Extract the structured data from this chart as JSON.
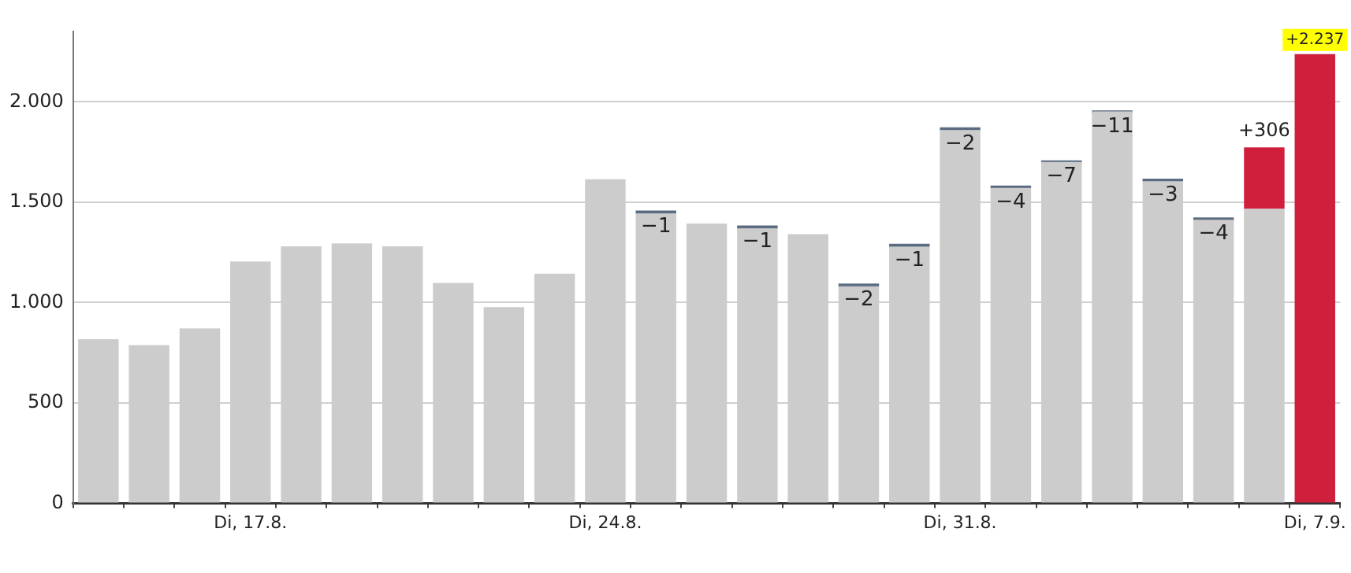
{
  "chart_data": {
    "type": "bar",
    "stacked": true,
    "categories": [
      null,
      null,
      null,
      "Di, 17.8.",
      null,
      null,
      null,
      null,
      null,
      null,
      "Di, 24.8.",
      null,
      null,
      null,
      null,
      null,
      null,
      "Di, 31.8.",
      null,
      null,
      null,
      null,
      null,
      null,
      "Di, 7.9."
    ],
    "series": [
      {
        "color": "#cccccc",
        "values": [
          818,
          788,
          871,
          1205,
          1280,
          1295,
          1280,
          1098,
          977,
          1144,
          1614,
          1444,
          1394,
          1369,
          1341,
          1081,
          1278,
          1859,
          1571,
          1700,
          1952,
          1604,
          1412,
          1467,
          null
        ]
      },
      {
        "color": "#d01f3c",
        "values": [
          null,
          null,
          null,
          null,
          null,
          null,
          null,
          null,
          null,
          null,
          null,
          null,
          null,
          null,
          null,
          null,
          null,
          null,
          null,
          null,
          null,
          null,
          null,
          306,
          2237
        ],
        "value_labels": [
          null,
          null,
          null,
          null,
          null,
          null,
          null,
          null,
          null,
          null,
          null,
          null,
          null,
          null,
          null,
          null,
          null,
          null,
          null,
          null,
          null,
          null,
          null,
          "+306",
          "+2.237"
        ]
      },
      {
        "color": "#5b6b82",
        "base": [
          null,
          null,
          null,
          null,
          null,
          null,
          null,
          null,
          null,
          null,
          null,
          1444,
          null,
          1369,
          null,
          1081,
          1278,
          1859,
          1571,
          1700,
          1952,
          1604,
          1412,
          null,
          null
        ],
        "values": [
          null,
          null,
          null,
          null,
          null,
          null,
          null,
          null,
          null,
          null,
          null,
          -1,
          null,
          -1,
          null,
          -2,
          -1,
          -2,
          -4,
          -7,
          -11,
          -3,
          -4,
          null,
          null
        ],
        "value_labels": [
          null,
          null,
          null,
          null,
          null,
          null,
          null,
          null,
          null,
          null,
          null,
          "−1",
          null,
          "−1",
          null,
          "−2",
          "−1",
          "−2",
          "−4",
          "−7",
          "−11",
          "−3",
          "−4",
          null,
          null
        ]
      }
    ],
    "ylim": [
      0,
      2350
    ],
    "yticks": [
      0,
      500,
      {
        "value": 1000,
        "label": "1.000"
      },
      {
        "value": 1500,
        "label": "1.500"
      },
      {
        "value": 2000,
        "label": "2.000"
      }
    ],
    "grid": "y",
    "legend": false
  }
}
